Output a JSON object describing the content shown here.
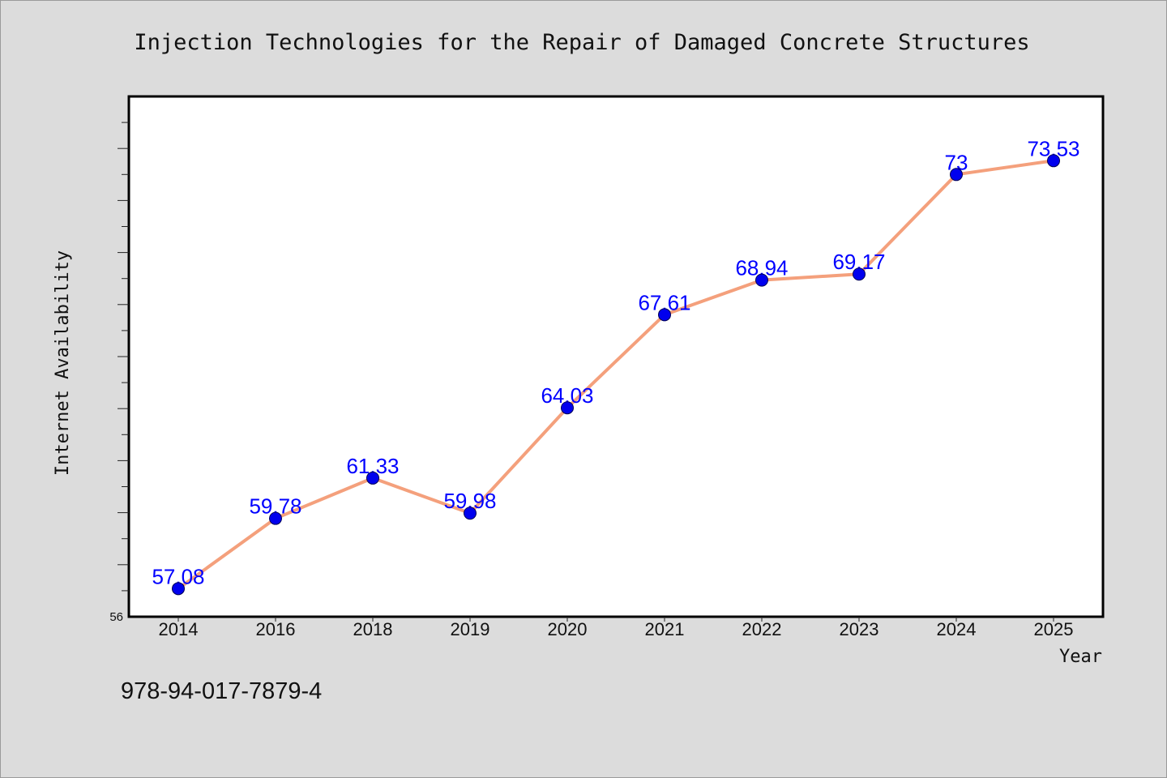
{
  "chart_data": {
    "type": "line",
    "title": "Injection Technologies for the Repair of Damaged Concrete Structures",
    "xlabel": "Year",
    "ylabel": "Internet Availability",
    "categories": [
      "2014",
      "2016",
      "2018",
      "2019",
      "2020",
      "2021",
      "2022",
      "2023",
      "2024",
      "2025"
    ],
    "series": [
      {
        "values": [
          57.08,
          59.78,
          61.33,
          59.98,
          64.03,
          67.61,
          68.94,
          69.17,
          73,
          73.53
        ],
        "data_labels": [
          "57.08",
          "59.78",
          "61.33",
          "59.98",
          "64.03",
          "67.61",
          "68.94",
          "69.17",
          "73",
          "73.53"
        ]
      }
    ],
    "ylim": [
      56,
      76
    ],
    "y_min_label": "56",
    "grid": false,
    "legend": "none",
    "colors": {
      "line": "#f4a07c",
      "marker": "#0000ee",
      "data_label": "#0000ff",
      "plot_background": "#ffffff",
      "page_background": "#dcdcdc"
    }
  },
  "footer": {
    "isbn": "978-94-017-7879-4"
  }
}
